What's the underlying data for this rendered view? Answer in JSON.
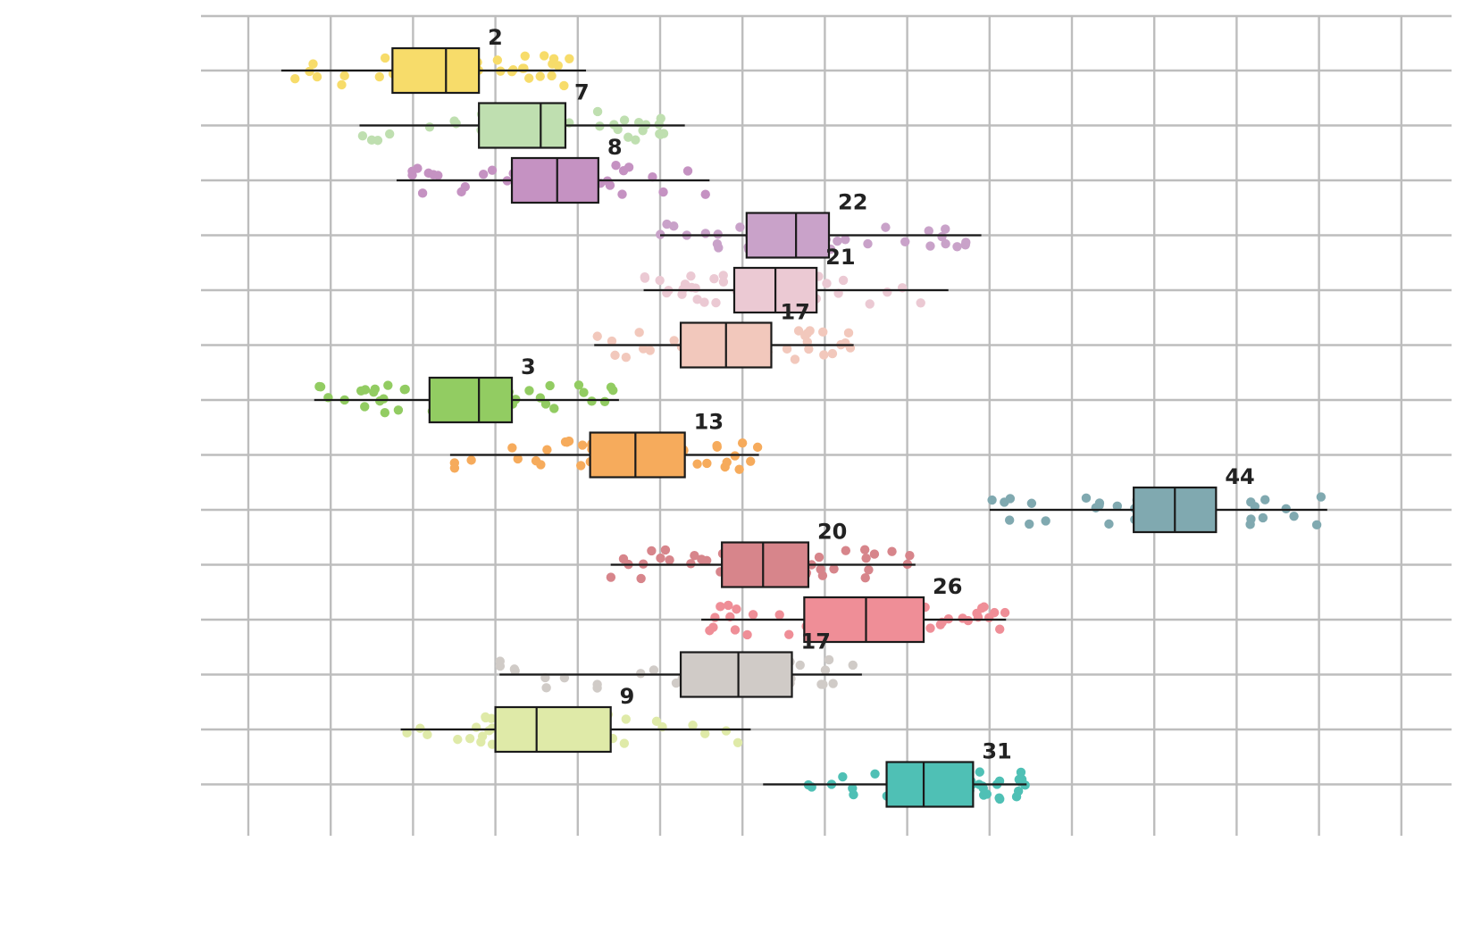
{
  "chart_data": {
    "type": "boxplot",
    "orientation": "horizontal",
    "grid": true,
    "x_gridlines": 15,
    "y_gridlines": 15,
    "legend": "none",
    "title": "",
    "xlabel": "",
    "ylabel": "",
    "series": [
      {
        "label": "2",
        "row": 0,
        "color": "#f7dc6a",
        "min": 0.4,
        "q1": 1.75,
        "median": 2.4,
        "q3": 2.8,
        "max": 4.1
      },
      {
        "label": "7",
        "row": 1,
        "color": "#bfdfb0",
        "min": 1.35,
        "q1": 2.8,
        "median": 3.55,
        "q3": 3.85,
        "max": 5.3
      },
      {
        "label": "8",
        "row": 2,
        "color": "#c592c2",
        "min": 1.8,
        "q1": 3.2,
        "median": 3.75,
        "q3": 4.25,
        "max": 5.6
      },
      {
        "label": "22",
        "row": 3,
        "color": "#c9a2c9",
        "min": 5.0,
        "q1": 6.05,
        "median": 6.65,
        "q3": 7.05,
        "max": 8.9
      },
      {
        "label": "21",
        "row": 4,
        "color": "#ebc9d3",
        "min": 4.8,
        "q1": 5.9,
        "median": 6.4,
        "q3": 6.9,
        "max": 8.5
      },
      {
        "label": "17",
        "row": 5,
        "color": "#f2c8bc",
        "min": 4.2,
        "q1": 5.25,
        "median": 5.8,
        "q3": 6.35,
        "max": 7.35
      },
      {
        "label": "3",
        "row": 6,
        "color": "#92cc62",
        "min": 0.8,
        "q1": 2.2,
        "median": 2.8,
        "q3": 3.2,
        "max": 4.5
      },
      {
        "label": "13",
        "row": 7,
        "color": "#f6ab5c",
        "min": 2.45,
        "q1": 4.15,
        "median": 4.7,
        "q3": 5.3,
        "max": 6.2
      },
      {
        "label": "44",
        "row": 8,
        "color": "#80a9b0",
        "min": 9.0,
        "q1": 10.75,
        "median": 11.25,
        "q3": 11.75,
        "max": 13.1
      },
      {
        "label": "20",
        "row": 9,
        "color": "#d7858b",
        "min": 4.4,
        "q1": 5.75,
        "median": 6.25,
        "q3": 6.8,
        "max": 8.1
      },
      {
        "label": "26",
        "row": 10,
        "color": "#ef8e97",
        "min": 5.5,
        "q1": 6.75,
        "median": 7.5,
        "q3": 8.2,
        "max": 9.2
      },
      {
        "label": "17",
        "row": 11,
        "color": "#d0cbc7",
        "min": 3.05,
        "q1": 5.25,
        "median": 5.95,
        "q3": 6.6,
        "max": 7.45
      },
      {
        "label": "9",
        "row": 12,
        "color": "#dfeaa8",
        "min": 1.85,
        "q1": 3.0,
        "median": 3.5,
        "q3": 4.4,
        "max": 6.1
      },
      {
        "label": "31",
        "row": 13,
        "color": "#4fc0b5",
        "min": 6.25,
        "q1": 7.75,
        "median": 8.2,
        "q3": 8.8,
        "max": 9.45
      }
    ]
  }
}
